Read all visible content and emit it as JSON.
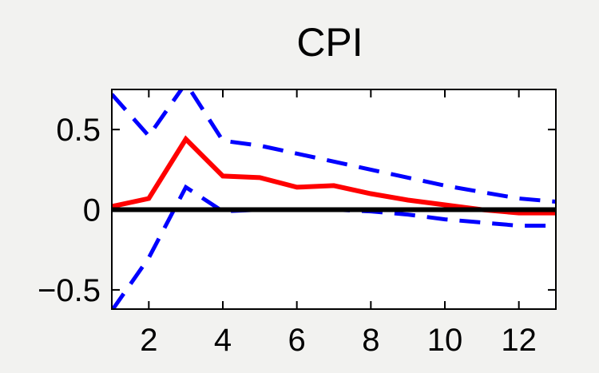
{
  "chart_data": {
    "type": "line",
    "title": "CPI",
    "xlabel": "",
    "ylabel": "",
    "xlim": [
      1,
      13
    ],
    "ylim": [
      -0.62,
      0.75
    ],
    "xticks": [
      2,
      4,
      6,
      8,
      10,
      12
    ],
    "xtick_labels": [
      "2",
      "4",
      "6",
      "8",
      "10",
      "12"
    ],
    "yticks": [
      -0.5,
      0,
      0.5
    ],
    "ytick_labels": [
      "−0.5",
      "0",
      "0.5"
    ],
    "grid": false,
    "legend": "none",
    "zero_line": 0,
    "series": [
      {
        "role": "response",
        "style": "solid",
        "color": "#ff0000",
        "x": [
          1,
          2,
          3,
          4,
          5,
          6,
          7,
          8,
          9,
          10,
          11,
          12,
          13
        ],
        "values": [
          0.02,
          0.07,
          0.44,
          0.21,
          0.2,
          0.14,
          0.15,
          0.1,
          0.06,
          0.03,
          0.0,
          -0.02,
          -0.02
        ]
      },
      {
        "role": "upper-band",
        "style": "dashed",
        "color": "#0000ff",
        "x": [
          1,
          2,
          3,
          4,
          5,
          6,
          7,
          8,
          9,
          10,
          11,
          12,
          13
        ],
        "values": [
          0.72,
          0.46,
          0.79,
          0.43,
          0.4,
          0.35,
          0.3,
          0.25,
          0.2,
          0.15,
          0.11,
          0.07,
          0.05
        ]
      },
      {
        "role": "lower-band",
        "style": "dashed",
        "color": "#0000ff",
        "x": [
          1,
          2,
          3,
          4,
          5,
          6,
          7,
          8,
          9,
          10,
          11,
          12,
          13
        ],
        "values": [
          -0.63,
          -0.3,
          0.14,
          -0.01,
          0.0,
          0.0,
          0.0,
          -0.01,
          -0.03,
          -0.06,
          -0.08,
          -0.1,
          -0.1
        ]
      }
    ]
  },
  "colors": {
    "background": "#f2f2f0",
    "axes_background": "#ffffff",
    "zero_line": "#000000"
  }
}
